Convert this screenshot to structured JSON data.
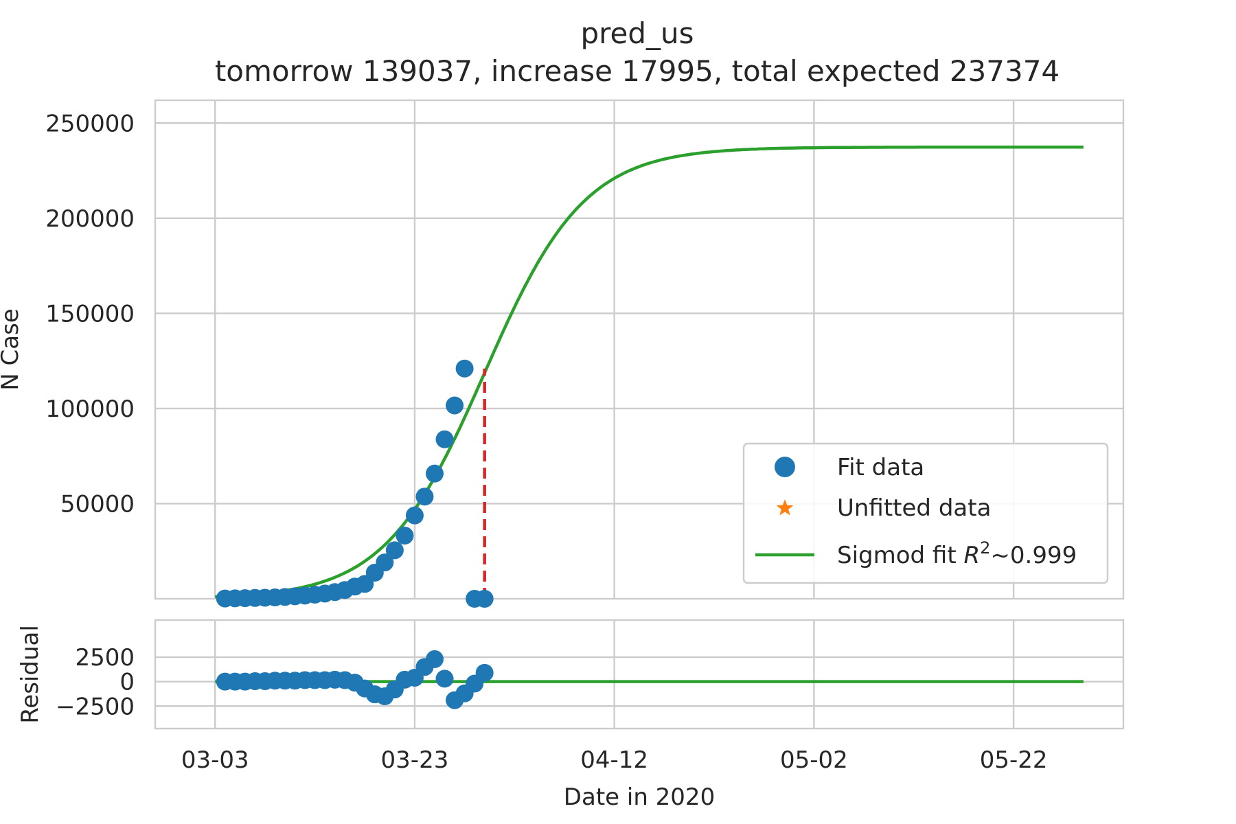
{
  "chart_data": [
    {
      "type": "scatter",
      "panel": "main",
      "title": "pred_us",
      "subtitle": "tomorrow 139037, increase 17995, total expected 237374",
      "xlabel": "",
      "ylabel": "N Case",
      "ylim": [
        0,
        262000
      ],
      "xlim": [
        "2020-02-26",
        "2020-06-02"
      ],
      "grid": true,
      "yticks": [
        50000,
        100000,
        150000,
        200000,
        250000
      ],
      "ytick_labels": [
        "50000",
        "100000",
        "150000",
        "200000",
        "250000"
      ],
      "legend": {
        "placement": "lower-right",
        "entries": [
          {
            "label": "Fit data",
            "marker": "circle",
            "color": "#1f77b4"
          },
          {
            "label": "Unfitted data",
            "marker": "star",
            "color": "#ff7f0e"
          },
          {
            "label_text": "Sigmod fit ",
            "label_math_base": "R",
            "label_math_sup": "2",
            "label_tail": "~0.999",
            "marker": "line",
            "color": "#2ca02c"
          }
        ]
      },
      "series": [
        {
          "name": "Fit data",
          "kind": "points",
          "color": "#1f77b4",
          "x": [
            "2020-03-04",
            "2020-03-05",
            "2020-03-06",
            "2020-03-07",
            "2020-03-08",
            "2020-03-09",
            "2020-03-10",
            "2020-03-11",
            "2020-03-12",
            "2020-03-13",
            "2020-03-14",
            "2020-03-15",
            "2020-03-16",
            "2020-03-17",
            "2020-03-18",
            "2020-03-19",
            "2020-03-20",
            "2020-03-21",
            "2020-03-22",
            "2020-03-23",
            "2020-03-24",
            "2020-03-25",
            "2020-03-26",
            "2020-03-27",
            "2020-03-28",
            "2020-03-29",
            "2020-03-30"
          ],
          "y": [
            150,
            220,
            320,
            430,
            550,
            710,
            960,
            1300,
            1660,
            2180,
            2730,
            3500,
            4600,
            6400,
            7800,
            13700,
            19100,
            25500,
            33200,
            43800,
            53700,
            65800,
            83800,
            101600,
            121000,
            0,
            0
          ]
        },
        {
          "name": "Sigmod fit",
          "kind": "sigmoid",
          "color": "#2ca02c",
          "L": 237374,
          "k": 0.2,
          "x0": "2020-03-30",
          "x_range": [
            "2020-03-03",
            "2020-05-29"
          ]
        }
      ],
      "annotations": [
        {
          "kind": "vline",
          "x": "2020-03-30",
          "y_from": 0,
          "y_to": 121000,
          "color": "#d62728",
          "style": "dashed"
        }
      ]
    },
    {
      "type": "scatter",
      "panel": "residual",
      "xlabel": "Date in 2020",
      "ylabel": "Residual",
      "ylim": [
        -4800,
        6300
      ],
      "grid": true,
      "yticks": [
        -2500,
        0,
        2500
      ],
      "ytick_labels": [
        "−2500",
        "0",
        "2500"
      ],
      "xticks": [
        "2020-03-03",
        "2020-03-23",
        "2020-04-12",
        "2020-05-02",
        "2020-05-22"
      ],
      "xtick_labels": [
        "03-03",
        "03-23",
        "04-12",
        "05-02",
        "05-22"
      ],
      "series": [
        {
          "name": "Fit data",
          "kind": "points",
          "color": "#1f77b4",
          "x": [
            "2020-03-04",
            "2020-03-05",
            "2020-03-06",
            "2020-03-07",
            "2020-03-08",
            "2020-03-09",
            "2020-03-10",
            "2020-03-11",
            "2020-03-12",
            "2020-03-13",
            "2020-03-14",
            "2020-03-15",
            "2020-03-16",
            "2020-03-17",
            "2020-03-18",
            "2020-03-19",
            "2020-03-20",
            "2020-03-21",
            "2020-03-22",
            "2020-03-23",
            "2020-03-24",
            "2020-03-25",
            "2020-03-26",
            "2020-03-27",
            "2020-03-28",
            "2020-03-29",
            "2020-03-30"
          ],
          "y": [
            0,
            0,
            0,
            50,
            50,
            100,
            100,
            100,
            150,
            150,
            150,
            200,
            150,
            -100,
            -700,
            -1300,
            -1500,
            -800,
            200,
            400,
            1500,
            2300,
            300,
            -1900,
            -1200,
            -200,
            900
          ]
        },
        {
          "name": "Zero line",
          "kind": "hline",
          "color": "#2ca02c",
          "y": 0,
          "x_range": [
            "2020-03-03",
            "2020-05-29"
          ]
        }
      ]
    }
  ]
}
